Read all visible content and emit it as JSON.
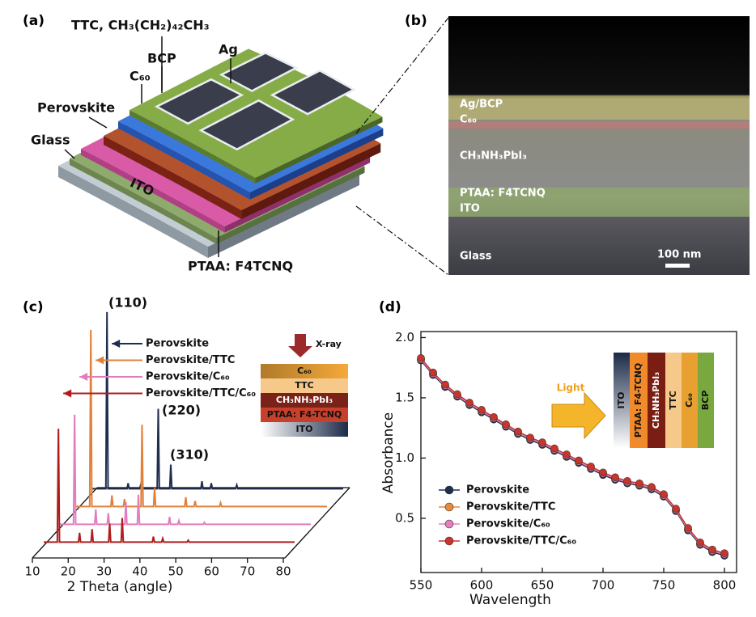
{
  "panel_labels": [
    "(a)",
    "(b)",
    "(c)",
    "(d)"
  ],
  "device": {
    "labels": [
      "TTC, CH₃(CH₂)₄₂CH₃",
      "Ag",
      "BCP",
      "C₆₀",
      "Perovskite",
      "Glass",
      "ITO",
      "PTAA: F4TCNQ"
    ]
  },
  "sem": {
    "layers": [
      "Ag/BCP",
      "C₆₀",
      "CH₃NH₃PbI₃",
      "PTAA: F4TCNQ",
      "ITO",
      "Glass"
    ],
    "scale_bar": "100 nm"
  },
  "chart_data": [
    {
      "type": "waterfall",
      "x_label": "2 Theta (angle)",
      "xlim": [
        10,
        80
      ],
      "xticks": [
        10,
        20,
        30,
        40,
        50,
        60,
        70,
        80
      ],
      "ylim": [
        0,
        100
      ],
      "annotations": [
        "(110)",
        "(220)",
        "(310)"
      ],
      "inset": {
        "source": "X-ray",
        "layers": [
          "C₆₀",
          "TTC",
          "CH₃NH₃PbI₃",
          "PTAA: F4-TCNQ",
          "ITO"
        ]
      },
      "x": [
        10,
        13.8,
        14.1,
        14.4,
        19.7,
        20.0,
        20.3,
        23.2,
        23.5,
        23.8,
        28.1,
        28.4,
        28.7,
        31.6,
        31.9,
        32.2,
        40.3,
        40.6,
        40.9,
        42.9,
        43.2,
        43.5,
        50.0,
        50.3,
        50.6,
        80
      ],
      "series": [
        {
          "name": "Perovskite",
          "color": "#1f2d4f",
          "values": [
            2,
            2,
            97,
            2,
            2,
            5,
            2,
            2,
            4,
            2,
            2,
            45,
            2,
            2,
            15,
            2,
            2,
            6,
            2,
            2,
            5,
            2,
            2,
            4,
            2,
            2
          ]
        },
        {
          "name": "Perovskite/TTC",
          "color": "#e2803a",
          "values": [
            2,
            2,
            97,
            2,
            2,
            8,
            2,
            2,
            6,
            2,
            2,
            46,
            2,
            2,
            12,
            2,
            2,
            7,
            2,
            2,
            5,
            2,
            2,
            4,
            2,
            2
          ]
        },
        {
          "name": "Perovskite/C₆₀",
          "color": "#e27cbf",
          "values": [
            2,
            2,
            61,
            2,
            2,
            10,
            2,
            2,
            8,
            2,
            2,
            14,
            2,
            2,
            18,
            2,
            2,
            6,
            2,
            2,
            4,
            2,
            2,
            3,
            2,
            2
          ]
        },
        {
          "name": "Perovskite/TTC/C₆₀",
          "color": "#b01c1c",
          "values": [
            2,
            2,
            63,
            2,
            2,
            7,
            2,
            2,
            9,
            2,
            2,
            12,
            2,
            2,
            15,
            2,
            2,
            5,
            2,
            2,
            4,
            2,
            2,
            3,
            2,
            2
          ]
        }
      ]
    },
    {
      "type": "line",
      "x_label": "Wavelength",
      "y_label": "Absorbance",
      "xlim": [
        550,
        810
      ],
      "xticks": [
        550,
        600,
        650,
        700,
        750,
        800
      ],
      "ylim": [
        0.05,
        2.05
      ],
      "yticks": [
        0.5,
        {
          "value": 1.0,
          "label": "1.0"
        },
        1.5,
        {
          "value": 2.0,
          "label": "2.0"
        }
      ],
      "inset": {
        "source": "Light",
        "layers": [
          "ITO",
          "PTAA: F4-TCNQ",
          "CH₃NH₃PbI₃",
          "TTC",
          "C₆₀",
          "BCP"
        ]
      },
      "x": [
        550,
        560,
        570,
        580,
        590,
        600,
        610,
        620,
        630,
        640,
        650,
        660,
        670,
        680,
        690,
        700,
        710,
        720,
        730,
        740,
        750,
        760,
        770,
        780,
        790,
        800
      ],
      "series": [
        {
          "name": "Perovskite",
          "color": "#1f2d4f",
          "values": [
            1.81,
            1.69,
            1.59,
            1.51,
            1.44,
            1.38,
            1.32,
            1.26,
            1.2,
            1.15,
            1.11,
            1.06,
            1.01,
            0.96,
            0.91,
            0.86,
            0.82,
            0.79,
            0.77,
            0.74,
            0.68,
            0.56,
            0.4,
            0.28,
            0.22,
            0.19
          ]
        },
        {
          "name": "Perovskite/TTC",
          "color": "#e88a3c",
          "values": [
            1.82,
            1.7,
            1.6,
            1.52,
            1.45,
            1.39,
            1.33,
            1.27,
            1.21,
            1.16,
            1.12,
            1.07,
            1.02,
            0.97,
            0.92,
            0.87,
            0.83,
            0.8,
            0.78,
            0.75,
            0.69,
            0.57,
            0.41,
            0.29,
            0.23,
            0.2
          ]
        },
        {
          "name": "Perovskite/C₆₀",
          "color": "#e57fbf",
          "values": [
            1.82,
            1.7,
            1.6,
            1.52,
            1.45,
            1.39,
            1.33,
            1.27,
            1.21,
            1.16,
            1.12,
            1.07,
            1.02,
            0.97,
            0.92,
            0.87,
            0.83,
            0.8,
            0.78,
            0.75,
            0.69,
            0.57,
            0.41,
            0.29,
            0.23,
            0.2
          ]
        },
        {
          "name": "Perovskite/TTC/C₆₀",
          "color": "#c8352c",
          "values": [
            1.83,
            1.71,
            1.61,
            1.53,
            1.46,
            1.4,
            1.34,
            1.28,
            1.22,
            1.17,
            1.13,
            1.08,
            1.03,
            0.98,
            0.93,
            0.88,
            0.84,
            0.81,
            0.79,
            0.76,
            0.7,
            0.58,
            0.42,
            0.3,
            0.24,
            0.21
          ]
        }
      ]
    }
  ]
}
